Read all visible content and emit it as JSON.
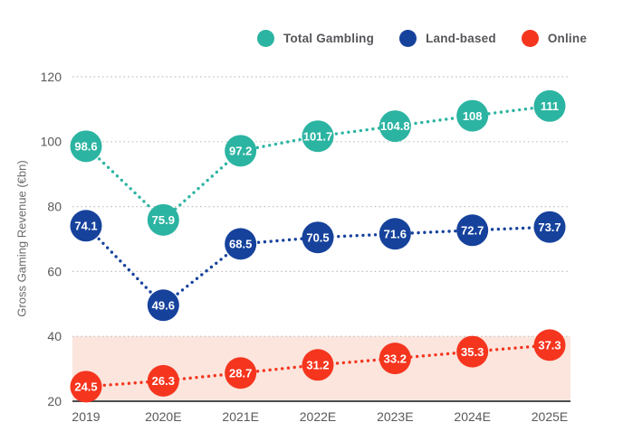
{
  "chart_data": {
    "type": "line",
    "title": "",
    "xlabel": "",
    "ylabel": "Gross Gaming Revenue (€bn)",
    "categories": [
      "2019",
      "2020E",
      "2021E",
      "2022E",
      "2023E",
      "2024E",
      "2025E"
    ],
    "series": [
      {
        "name": "Total Gambling",
        "color": "#2cb4a2",
        "values": [
          98.6,
          75.9,
          97.2,
          101.7,
          104.8,
          108,
          111
        ],
        "labels": [
          "98.6",
          "75.9",
          "97.2",
          "101.7",
          "104.8",
          "108",
          "111"
        ]
      },
      {
        "name": "Land-based",
        "color": "#16429c",
        "values": [
          74.1,
          49.6,
          68.5,
          70.5,
          71.6,
          72.7,
          73.7
        ],
        "labels": [
          "74.1",
          "49.6",
          "68.5",
          "70.5",
          "71.6",
          "72.7",
          "73.7"
        ]
      },
      {
        "name": "Online",
        "color": "#f5351e",
        "values": [
          24.5,
          26.3,
          28.7,
          31.2,
          33.2,
          35.3,
          37.3
        ],
        "labels": [
          "24.5",
          "26.3",
          "28.7",
          "31.2",
          "33.2",
          "35.3",
          "37.3"
        ]
      }
    ],
    "ylim": [
      20,
      120
    ],
    "yticks": [
      20,
      40,
      60,
      80,
      100,
      120
    ],
    "grid": true,
    "legend_position": "top",
    "line_style": "dotted",
    "marker_radius": 17.5,
    "band": {
      "from": 20,
      "to": 40,
      "color": "#fbe5dd"
    },
    "colors": {
      "gridline": "#c2c2c2",
      "axis_line": "#4d4d4f",
      "tick_text": "#58595b",
      "background": "#ffffff"
    }
  }
}
